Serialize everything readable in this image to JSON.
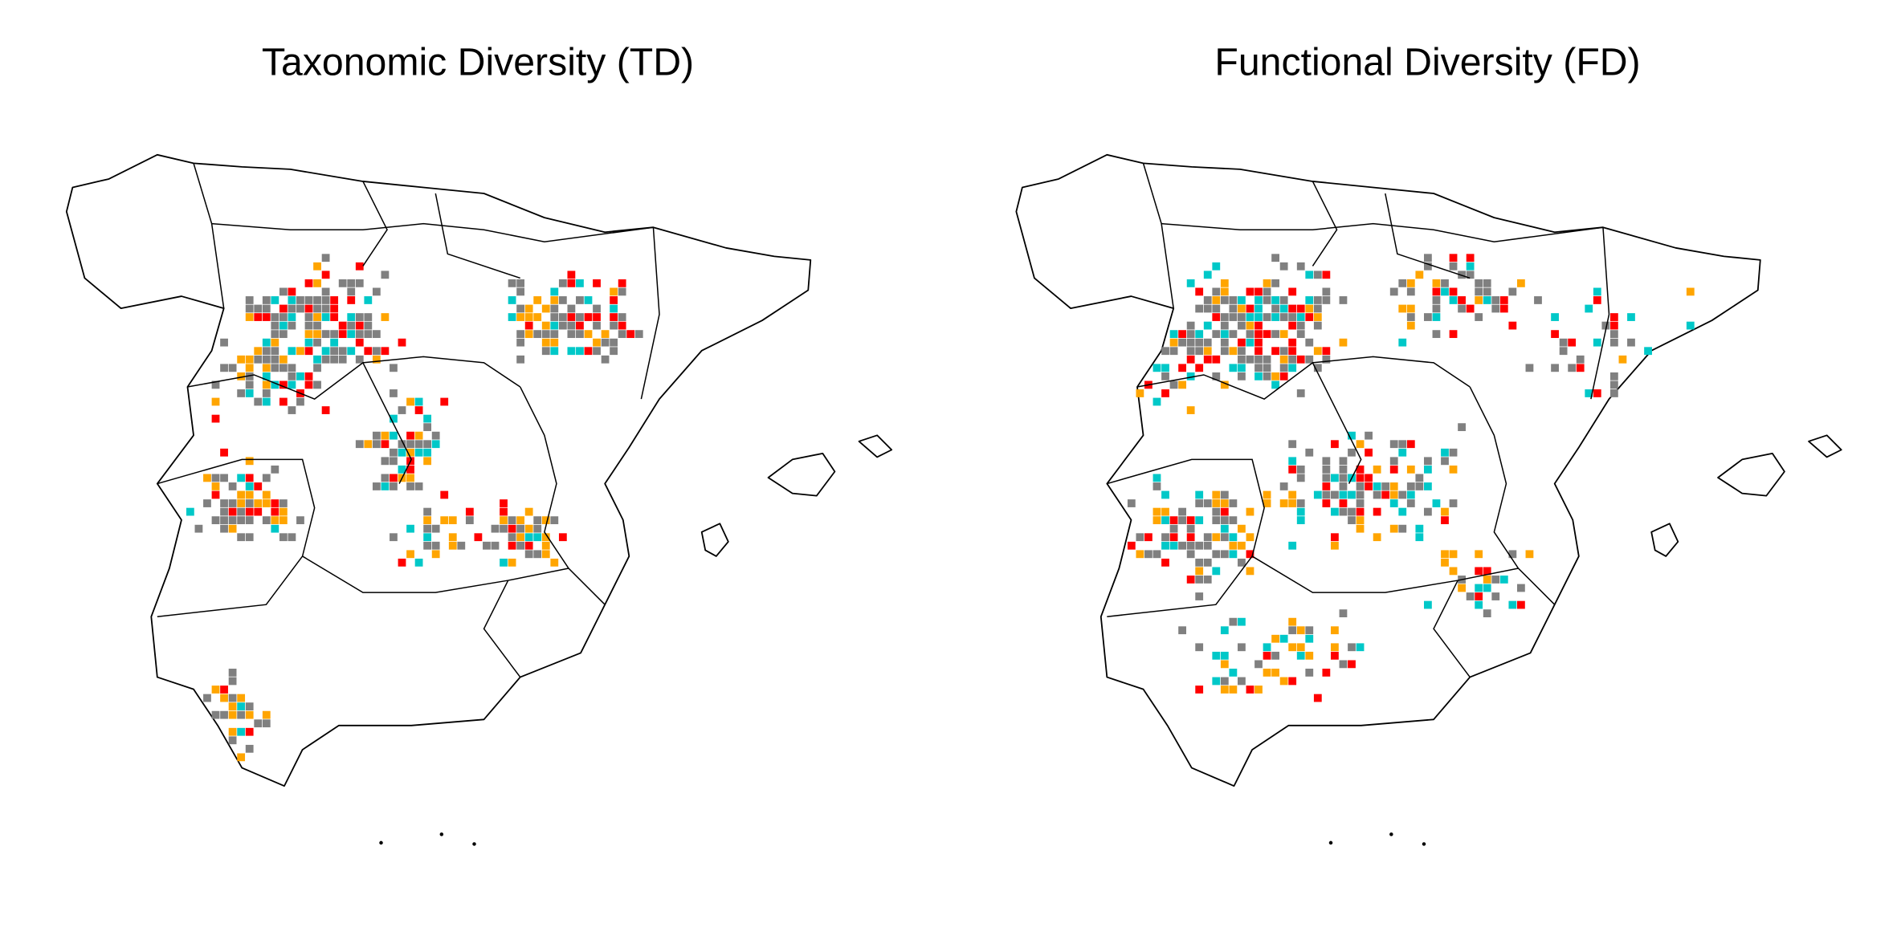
{
  "maps": [
    {
      "title": "Taxonomic Diversity (TD)"
    },
    {
      "title": "Functional Diversity (FD)"
    }
  ]
}
